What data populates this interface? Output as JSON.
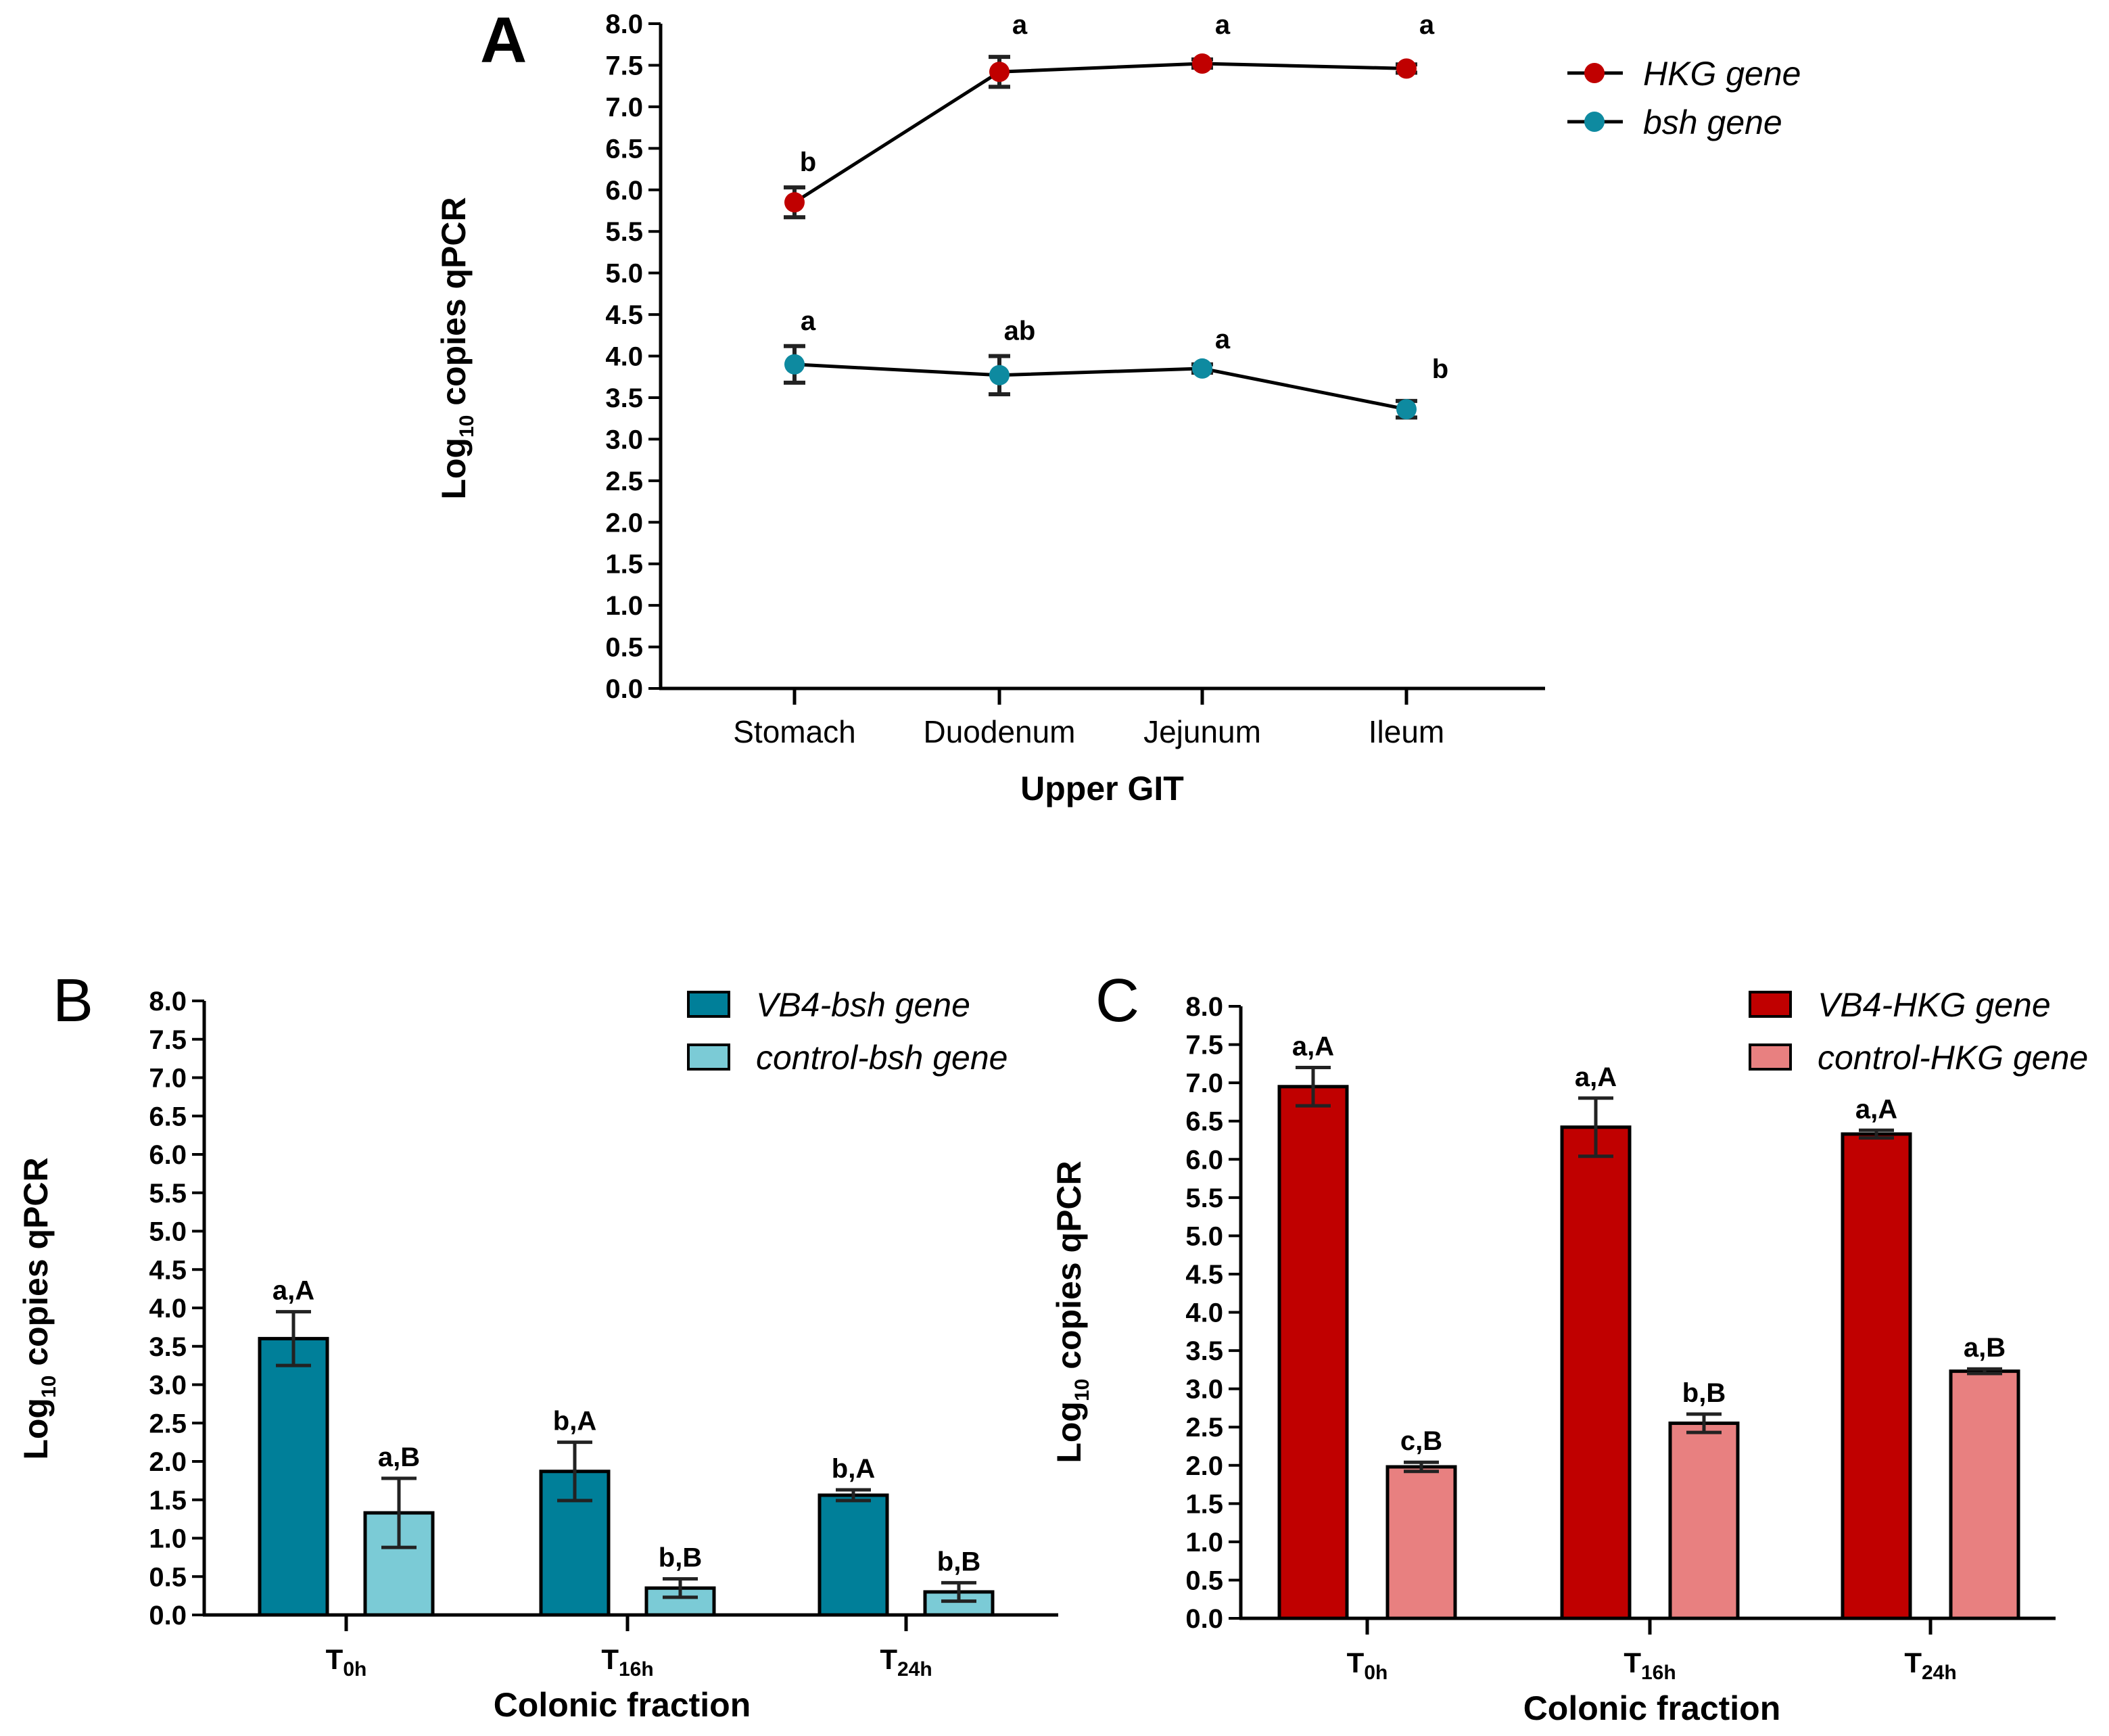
{
  "chart_data": [
    {
      "panel": "A",
      "type": "line",
      "xlabel": "Upper GIT",
      "ylabel": "Log10 copies qPCR",
      "ylabel_main": "Log",
      "ylabel_sub": "10",
      "ylabel_rest": " copies qPCR",
      "ylim": [
        0,
        8
      ],
      "yticks": [
        "0.0",
        "0.5",
        "1.0",
        "1.5",
        "2.0",
        "2.5",
        "3.0",
        "3.5",
        "4.0",
        "4.5",
        "5.0",
        "5.5",
        "6.0",
        "6.5",
        "7.0",
        "7.5",
        "8.0"
      ],
      "categories": [
        "Stomach",
        "Duodenum",
        "Jejunum",
        "Ileum"
      ],
      "series": [
        {
          "name": "HKG gene",
          "color": "#c00000",
          "values": [
            5.85,
            7.42,
            7.52,
            7.46
          ],
          "errors": [
            0.18,
            0.18,
            0.05,
            0.05
          ],
          "labels": [
            "b",
            "a",
            "a",
            "a"
          ]
        },
        {
          "name": "bsh gene",
          "color": "#0e8aa0",
          "values": [
            3.9,
            3.77,
            3.85,
            3.36
          ],
          "errors": [
            0.22,
            0.23,
            0.05,
            0.1
          ],
          "labels": [
            "a",
            "ab",
            "a",
            "b"
          ]
        }
      ]
    },
    {
      "panel": "B",
      "type": "bar",
      "xlabel": "Colonic fraction",
      "ylabel": "Log10 copies qPCR",
      "ylabel_main": "Log",
      "ylabel_sub": "10",
      "ylabel_rest": " copies qPCR",
      "ylim": [
        0,
        8
      ],
      "yticks": [
        "0.0",
        "0.5",
        "1.0",
        "1.5",
        "2.0",
        "2.5",
        "3.0",
        "3.5",
        "4.0",
        "4.5",
        "5.0",
        "5.5",
        "6.0",
        "6.5",
        "7.0",
        "7.5",
        "8.0"
      ],
      "categories": [
        {
          "main": "T",
          "sub": "0h"
        },
        {
          "main": "T",
          "sub": "16h"
        },
        {
          "main": "T",
          "sub": "24h"
        }
      ],
      "series": [
        {
          "name": "VB4-bsh gene",
          "color": "#007f99",
          "values": [
            3.6,
            1.87,
            1.56
          ],
          "errors": [
            0.35,
            0.38,
            0.07
          ],
          "labels": [
            "a,A",
            "b,A",
            "b,A"
          ]
        },
        {
          "name": "control-bsh gene",
          "color": "#7bcbd6",
          "values": [
            1.33,
            0.35,
            0.3
          ],
          "errors": [
            0.45,
            0.12,
            0.12
          ],
          "labels": [
            "a,B",
            "b,B",
            "b,B"
          ]
        }
      ]
    },
    {
      "panel": "C",
      "type": "bar",
      "xlabel": "Colonic fraction",
      "ylabel": "Log10 copies qPCR",
      "ylabel_main": "Log",
      "ylabel_sub": "10",
      "ylabel_rest": " copies qPCR",
      "ylim": [
        0,
        8
      ],
      "yticks": [
        "0.0",
        "0.5",
        "1.0",
        "1.5",
        "2.0",
        "2.5",
        "3.0",
        "3.5",
        "4.0",
        "4.5",
        "5.0",
        "5.5",
        "6.0",
        "6.5",
        "7.0",
        "7.5",
        "8.0"
      ],
      "categories": [
        {
          "main": "T",
          "sub": "0h"
        },
        {
          "main": "T",
          "sub": "16h"
        },
        {
          "main": "T",
          "sub": "24h"
        }
      ],
      "series": [
        {
          "name": "VB4-HKG gene",
          "color": "#c00000",
          "values": [
            6.95,
            6.42,
            6.33
          ],
          "errors": [
            0.25,
            0.38,
            0.05
          ],
          "labels": [
            "a,A",
            "a,A",
            "a,A"
          ]
        },
        {
          "name": "control-HKG gene",
          "color": "#e88080",
          "values": [
            1.98,
            2.55,
            3.23
          ],
          "errors": [
            0.06,
            0.12,
            0.03
          ],
          "labels": [
            "c,B",
            "b,B",
            "a,B"
          ]
        }
      ]
    }
  ]
}
